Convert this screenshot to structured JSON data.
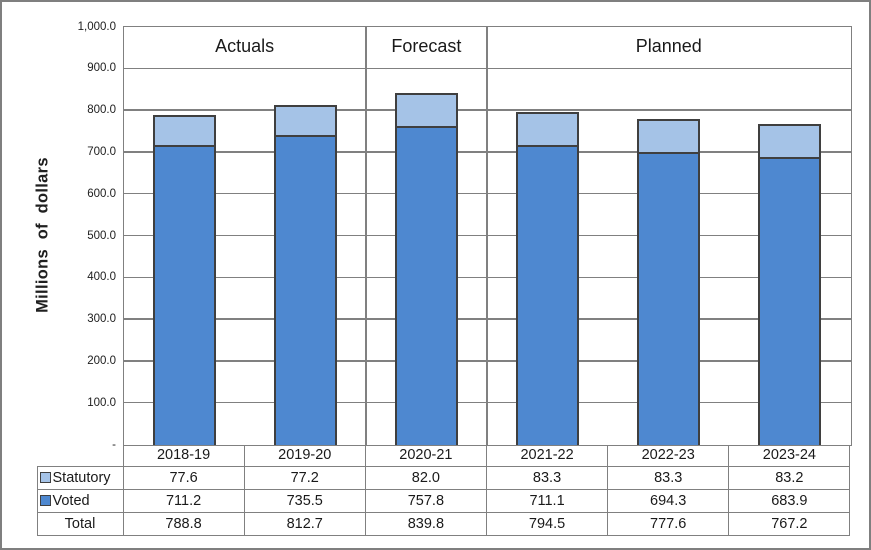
{
  "figure": {
    "background": "#FFFFFF",
    "border_color": "#7F7F7F"
  },
  "chart_data": {
    "type": "bar",
    "stacked": true,
    "title": "",
    "xlabel": "",
    "ylabel": "Millions  of  dollars",
    "categories": [
      "2018-19",
      "2019-20",
      "2020-21",
      "2021-22",
      "2022-23",
      "2023-24"
    ],
    "series": [
      {
        "name": "Voted",
        "color": "#4E88D0",
        "values": [
          711.2,
          735.5,
          757.8,
          711.1,
          694.3,
          683.9
        ]
      },
      {
        "name": "Statutory",
        "color": "#A5C3E7",
        "values": [
          77.6,
          77.2,
          82.0,
          83.3,
          83.3,
          83.2
        ]
      }
    ],
    "totals": {
      "name": "Total",
      "values": [
        788.8,
        812.7,
        839.8,
        794.5,
        777.6,
        767.2
      ]
    },
    "table_row_order": [
      "Statutory",
      "Voted",
      "Total"
    ],
    "sections": [
      {
        "label": "Actuals",
        "span": 2
      },
      {
        "label": "Forecast",
        "span": 1
      },
      {
        "label": "Planned",
        "span": 3
      }
    ],
    "ylim": [
      0,
      1000
    ],
    "ytick_step": 100,
    "ytick_labels": [
      "1,000.0",
      "900.0",
      "800.0",
      "700.0",
      "600.0",
      "500.0",
      "400.0",
      "300.0",
      "200.0",
      "100.0",
      "-"
    ],
    "grid": true,
    "legend_position": "table-left",
    "colors": {
      "bar_border": "#3F3F3F",
      "grid": "#808080",
      "text": "#202020"
    }
  }
}
